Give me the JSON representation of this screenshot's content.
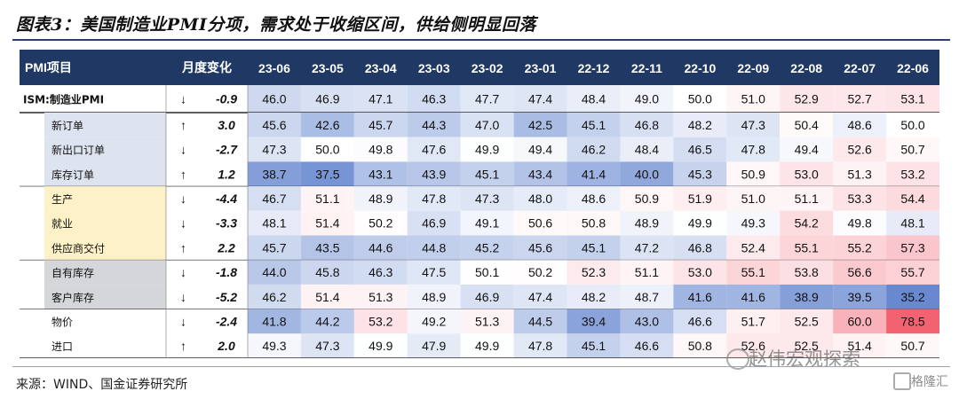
{
  "title": "图表3：美国制造业PMI分项，需求处于收缩区间，供给侧明显回落",
  "source": "来源：WIND、国金证券研究所",
  "watermark": "赵伟宏观探索",
  "logo_text": "格隆汇",
  "colors": {
    "header": "#1f3864",
    "up": "#e02020",
    "down": "#1a8a2a",
    "band_blue": "#dde4ef",
    "band_yellow": "#fdf1c7",
    "band_gray": "#d4d6da",
    "low": "#5b7fcc",
    "high": "#f25a6a"
  },
  "chart_data": {
    "type": "table",
    "header_item": "PMI项目",
    "header_change": "月度变化",
    "columns": [
      "23-06",
      "23-05",
      "23-04",
      "23-03",
      "23-02",
      "23-01",
      "22-12",
      "22-11",
      "22-10",
      "22-09",
      "22-08",
      "22-07",
      "22-06"
    ],
    "rows": [
      {
        "label": "ISM:制造业PMI",
        "change": "-0.9",
        "direction": "down",
        "band": "none",
        "values": [
          46.0,
          46.9,
          47.1,
          46.3,
          47.7,
          47.4,
          48.4,
          49.0,
          50.0,
          51.0,
          52.9,
          52.7,
          53.1
        ]
      },
      {
        "label": "新订单",
        "change": "3.0",
        "direction": "up",
        "band": "blue",
        "values": [
          45.6,
          42.6,
          45.7,
          44.3,
          47.0,
          42.5,
          45.1,
          46.8,
          48.2,
          47.3,
          50.4,
          48.6,
          50.0
        ]
      },
      {
        "label": "新出口订单",
        "change": "-2.7",
        "direction": "down",
        "band": "blue",
        "values": [
          47.3,
          50.0,
          49.8,
          47.6,
          49.9,
          49.4,
          46.2,
          48.4,
          46.5,
          47.8,
          49.4,
          52.6,
          50.7
        ]
      },
      {
        "label": "库存订单",
        "change": "1.2",
        "direction": "up",
        "band": "blue",
        "values": [
          38.7,
          37.5,
          43.1,
          43.9,
          45.1,
          43.4,
          41.4,
          40.0,
          45.3,
          50.9,
          53.0,
          51.3,
          53.2
        ]
      },
      {
        "label": "生产",
        "change": "-4.4",
        "direction": "down",
        "band": "yellow",
        "values": [
          46.7,
          51.1,
          48.9,
          47.8,
          47.3,
          48.0,
          48.6,
          50.9,
          51.9,
          51.0,
          51.1,
          53.3,
          54.4
        ]
      },
      {
        "label": "就业",
        "change": "-3.3",
        "direction": "down",
        "band": "yellow",
        "values": [
          48.1,
          51.4,
          50.2,
          46.9,
          49.1,
          50.6,
          50.8,
          48.9,
          49.9,
          49.3,
          54.2,
          49.8,
          48.1
        ]
      },
      {
        "label": "供应商交付",
        "change": "2.2",
        "direction": "up",
        "band": "yellow",
        "values": [
          45.7,
          43.5,
          44.6,
          44.8,
          45.2,
          45.6,
          45.1,
          47.2,
          46.8,
          52.4,
          55.1,
          55.2,
          57.3
        ]
      },
      {
        "label": "自有库存",
        "change": "-1.8",
        "direction": "down",
        "band": "gray",
        "values": [
          44.0,
          45.8,
          46.3,
          47.5,
          50.1,
          50.2,
          52.3,
          51.1,
          53.0,
          55.1,
          53.8,
          56.6,
          55.7
        ]
      },
      {
        "label": "客户库存",
        "change": "-5.2",
        "direction": "down",
        "band": "gray",
        "values": [
          46.2,
          51.4,
          51.3,
          48.9,
          46.9,
          47.4,
          48.2,
          48.7,
          41.6,
          41.6,
          38.9,
          39.5,
          35.2
        ]
      },
      {
        "label": "物价",
        "change": "-2.4",
        "direction": "down",
        "band": "none",
        "values": [
          41.8,
          44.2,
          53.2,
          49.2,
          51.3,
          44.5,
          39.4,
          43.0,
          46.6,
          51.7,
          52.5,
          60.0,
          78.5
        ]
      },
      {
        "label": "进口",
        "change": "2.0",
        "direction": "up",
        "band": "none",
        "values": [
          49.3,
          47.3,
          49.9,
          47.9,
          49.9,
          47.8,
          45.1,
          46.6,
          50.8,
          52.6,
          52.5,
          51.4,
          50.7
        ]
      }
    ]
  }
}
